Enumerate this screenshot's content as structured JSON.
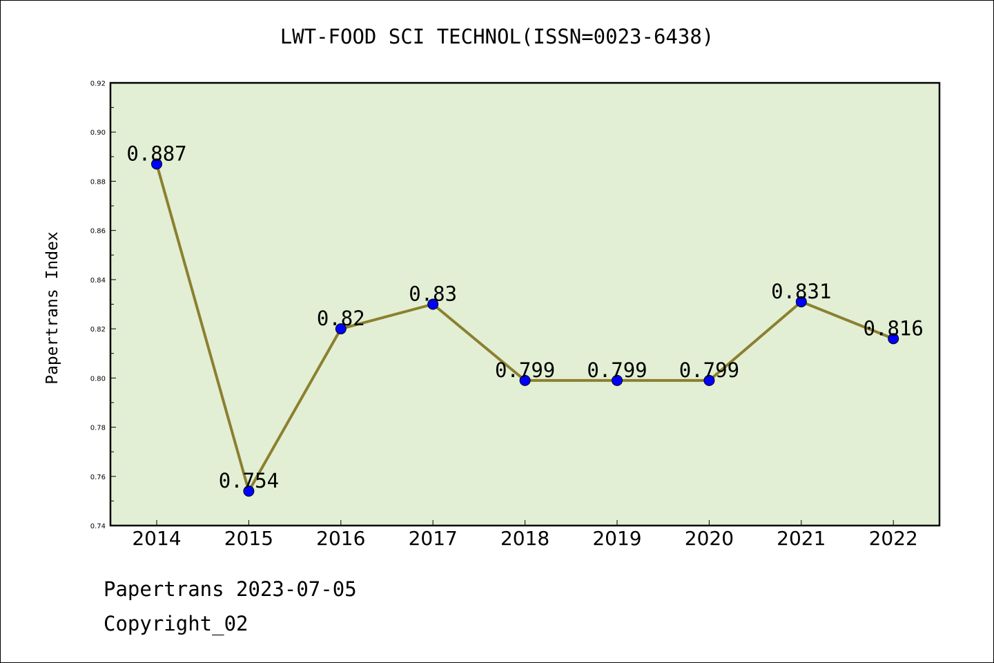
{
  "chart_data": {
    "type": "line",
    "title": "LWT-FOOD SCI TECHNOL(ISSN=0023-6438)",
    "xlabel": "",
    "ylabel": "Papertrans Index",
    "categories": [
      "2014",
      "2015",
      "2016",
      "2017",
      "2018",
      "2019",
      "2020",
      "2021",
      "2022"
    ],
    "series": [
      {
        "values": [
          0.887,
          0.754,
          0.82,
          0.83,
          0.799,
          0.799,
          0.799,
          0.831,
          0.816
        ],
        "labels": [
          "0.887",
          "0.754",
          "0.82",
          "0.83",
          "0.799",
          "0.799",
          "0.799",
          "0.831",
          "0.816"
        ],
        "line_color": "#8b8030",
        "marker_color": "#0000ff"
      }
    ],
    "ylim": [
      0.74,
      0.92
    ],
    "yticks": [
      "0.74",
      "0.76",
      "0.78",
      "0.80",
      "0.82",
      "0.84",
      "0.86",
      "0.88",
      "0.90",
      "0.92"
    ],
    "grid": false,
    "plot_background": "#e2efd4"
  },
  "footer": {
    "line1": "Papertrans 2023-07-05",
    "line2": "Copyright_02"
  }
}
